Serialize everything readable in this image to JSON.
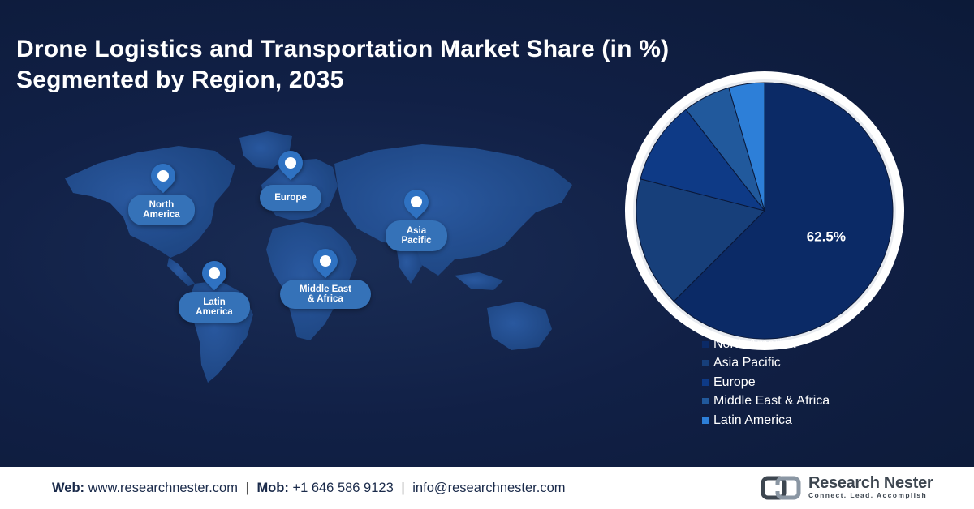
{
  "title": {
    "line1": "Drone Logistics and Transportation Market Share (in %)",
    "line2": "Segmented by Region, 2035"
  },
  "map": {
    "icon": "world-map-icon",
    "pin_icon": "location-pin-icon",
    "regions": {
      "north_america": "North\nAmerica",
      "europe": "Europe",
      "asia_pacific": "Asia\nPacific",
      "middle_east_africa": "Middle East\n& Africa",
      "latin_america": "Latin\nAmerica"
    }
  },
  "chart_data": {
    "type": "pie",
    "title": "Drone Logistics and Transportation Market Share (in %)",
    "subtitle": "Segmented by Region, 2035",
    "categories": [
      "North America",
      "Asia Pacific",
      "Europe",
      "Middle East & Africa",
      "Latin America"
    ],
    "values": [
      62.5,
      16.5,
      10.5,
      6.0,
      4.5
    ],
    "data_labels": [
      "62.5%",
      "",
      "",
      "",
      ""
    ],
    "colors": [
      "#0b2a66",
      "#173f7a",
      "#0e3a86",
      "#21599c",
      "#2d7fd8"
    ],
    "legend_position": "bottom-right"
  },
  "footer": {
    "web_label": "Web:",
    "web_value": "www.researchnester.com",
    "mob_label": "Mob:",
    "mob_value": "+1 646 586 9123",
    "email_value": "info@researchnester.com",
    "separator": "|",
    "logo_icon": "research-nester-logo-icon",
    "brand_name": "Research Nester",
    "brand_tagline": "Connect. Lead. Accomplish"
  }
}
